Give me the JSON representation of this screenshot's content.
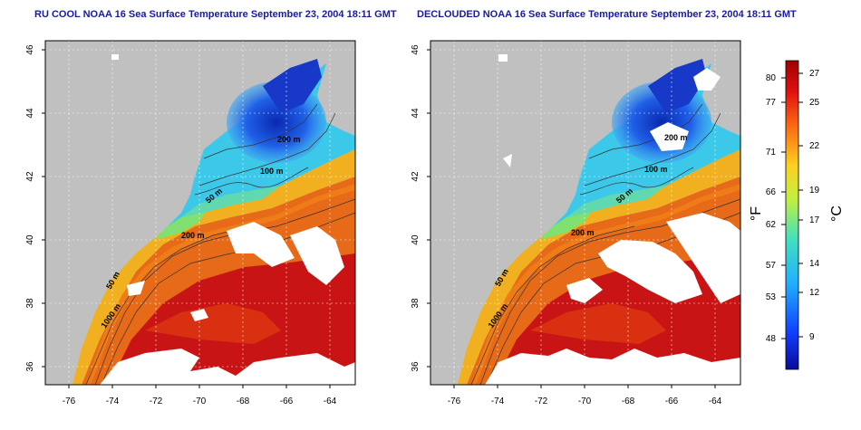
{
  "panels": [
    {
      "title": "RU COOL NOAA 16 Sea Surface Temperature September 23, 2004 18:11 GMT",
      "contours": [
        "200 m",
        "100 m",
        "50 m",
        "200 m",
        "50 m",
        "1000 m"
      ]
    },
    {
      "title": "DECLOUDED NOAA 16 Sea Surface Temperature September 23, 2004 18:11 GMT",
      "contours": [
        "200 m",
        "100 m",
        "50 m",
        "200 m",
        "50 m",
        "1000 m"
      ]
    }
  ],
  "axes": {
    "lat_ticks": [
      "46",
      "44",
      "42",
      "40",
      "38",
      "36"
    ],
    "lon_ticks": [
      "-76",
      "-74",
      "-72",
      "-70",
      "-68",
      "-66",
      "-64"
    ]
  },
  "colorbar": {
    "fahrenheit_unit": "°F",
    "celsius_unit": "°C",
    "fahrenheit_ticks": [
      "80",
      "77",
      "71",
      "66",
      "62",
      "57",
      "53",
      "48"
    ],
    "celsius_ticks": [
      "27",
      "25",
      "22",
      "19",
      "17",
      "14",
      "12",
      "9"
    ]
  },
  "colors": {
    "land": "#c0c0c0",
    "cloud": "#ffffff",
    "cold": "#1030d0",
    "mid": "#30c8e0",
    "warm": "#f0a020",
    "hot": "#c01010",
    "title": "#1a1aa0"
  }
}
